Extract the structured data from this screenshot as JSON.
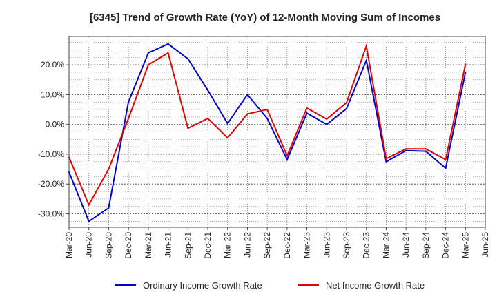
{
  "chart_data": {
    "type": "line",
    "title": "[6345]  Trend of Growth Rate (YoY) of 12-Month Moving Sum of Incomes",
    "xlabel": "",
    "ylabel": "",
    "x_tick_labels": [
      "Mar-20",
      "Jun-20",
      "Sep-20",
      "Dec-20",
      "Mar-21",
      "Jun-21",
      "Sep-21",
      "Dec-21",
      "Mar-22",
      "Jun-22",
      "Sep-22",
      "Dec-22",
      "Mar-23",
      "Jun-23",
      "Sep-23",
      "Dec-23",
      "Mar-24",
      "Jun-24",
      "Sep-24",
      "Dec-24",
      "Mar-25",
      "Jun-25"
    ],
    "y_tick_labels": [
      "20.0%",
      "10.0%",
      "0.0%",
      "-10.0%",
      "-20.0%",
      "-30.0%"
    ],
    "y_ticks": [
      20,
      10,
      0,
      -10,
      -20,
      -30
    ],
    "ylim": [
      -34.5,
      29.5
    ],
    "grid": true,
    "legend_position": "bottom",
    "series": [
      {
        "name": "Ordinary Income Growth Rate",
        "color": "#0000cc",
        "values": [
          -16.0,
          -32.5,
          -28.0,
          7.5,
          24.0,
          27.0,
          22.0,
          11.5,
          0.3,
          10.0,
          2.0,
          -11.8,
          3.8,
          0.0,
          5.3,
          21.5,
          -12.5,
          -8.8,
          -9.0,
          -14.7,
          17.5
        ]
      },
      {
        "name": "Net Income Growth Rate",
        "color": "#dd0000",
        "values": [
          -11.0,
          -27.0,
          -15.0,
          2.0,
          20.0,
          24.0,
          -1.3,
          2.0,
          -4.5,
          3.5,
          5.0,
          -10.5,
          5.5,
          1.8,
          7.3,
          26.3,
          -11.5,
          -8.2,
          -8.2,
          -11.8,
          20.2
        ]
      }
    ]
  }
}
